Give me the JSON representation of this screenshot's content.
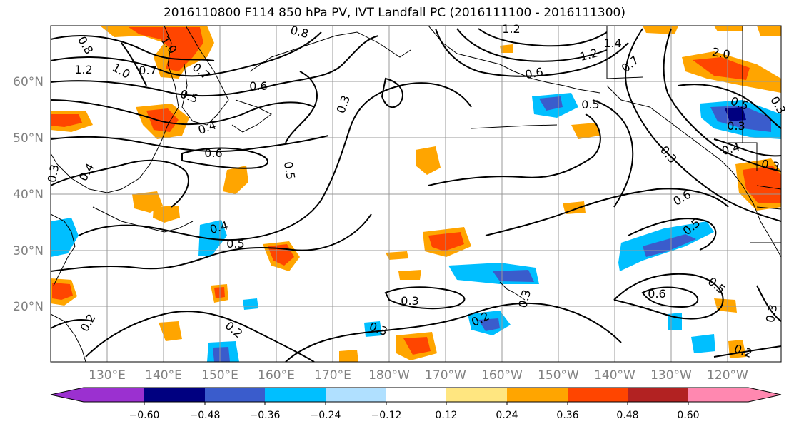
{
  "title": "2016110800 F114 850 hPa PV, IVT Landfall PC (2016111100 - 2016111300)",
  "map": {
    "lon_ticks": [
      "130°E",
      "140°E",
      "150°E",
      "160°E",
      "170°E",
      "180°W",
      "170°W",
      "160°W",
      "150°W",
      "140°W",
      "130°W",
      "120°W"
    ],
    "lat_ticks": [
      "60°N",
      "50°N",
      "40°N",
      "30°N",
      "20°N"
    ],
    "contour_labels": [
      "0.8",
      "1.0",
      "1.2",
      "1.0",
      "0.7",
      "0.7",
      "0.5",
      "0.6",
      "0.8",
      "0.4",
      "0.6",
      "0.5",
      "0.3",
      "0.4",
      "0.3",
      "0.4",
      "0.5",
      "0.3",
      "0.2",
      "0.2",
      "0.2",
      "0.3",
      "0.3",
      "1.2",
      "1.4",
      "1.2",
      "2.0",
      "0.6",
      "0.5",
      "0.7",
      "0.5",
      "0.3",
      "0.4",
      "0.3",
      "0.3",
      "0.6",
      "0.5",
      "0.6",
      "0.5",
      "0.3",
      "0.2",
      "0.3"
    ]
  },
  "colorbar": {
    "tick_labels": [
      "−0.60",
      "−0.48",
      "−0.36",
      "−0.24",
      "−0.12",
      "0.12",
      "0.24",
      "0.36",
      "0.48",
      "0.60"
    ],
    "colors": [
      "#9b30d0",
      "#000080",
      "#3a5ccc",
      "#00bfff",
      "#b0e0ff",
      "#ffffff",
      "#ffe680",
      "#ffa500",
      "#ff4500",
      "#b22222",
      "#ff88b0"
    ]
  }
}
